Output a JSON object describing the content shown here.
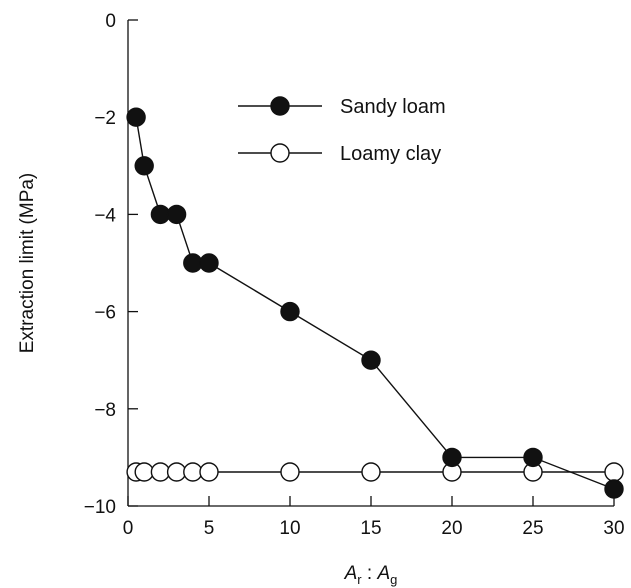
{
  "chart_data": {
    "type": "line",
    "xlabel_parts": {
      "main1": "A",
      "sub1": "r",
      "sep": " : ",
      "main2": "A",
      "sub2": "g"
    },
    "ylabel": "Extraction limit (MPa)",
    "xlim": [
      0,
      30
    ],
    "ylim": [
      -10,
      0
    ],
    "xticks": [
      0,
      5,
      10,
      15,
      20,
      25,
      30
    ],
    "yticks": [
      0,
      -2,
      -4,
      -6,
      -8,
      -10
    ],
    "ytick_labels": [
      "0",
      "−2",
      "−4",
      "−6",
      "−8",
      "−10"
    ],
    "grid": false,
    "legend_position": "top-right",
    "series": [
      {
        "name": "Sandy loam",
        "marker": "filled-circle",
        "color": "#111111",
        "x": [
          0.5,
          1,
          2,
          3,
          4,
          5,
          10,
          15,
          20,
          25,
          30
        ],
        "y": [
          -2,
          -3,
          -4,
          -4,
          -5,
          -5,
          -6,
          -7,
          -9,
          -9,
          -9.65
        ]
      },
      {
        "name": "Loamy clay",
        "marker": "open-circle",
        "color": "#111111",
        "x": [
          0.5,
          1,
          2,
          3,
          4,
          5,
          10,
          15,
          20,
          25,
          30
        ],
        "y": [
          -9.3,
          -9.3,
          -9.3,
          -9.3,
          -9.3,
          -9.3,
          -9.3,
          -9.3,
          -9.3,
          -9.3,
          -9.3
        ]
      }
    ]
  }
}
